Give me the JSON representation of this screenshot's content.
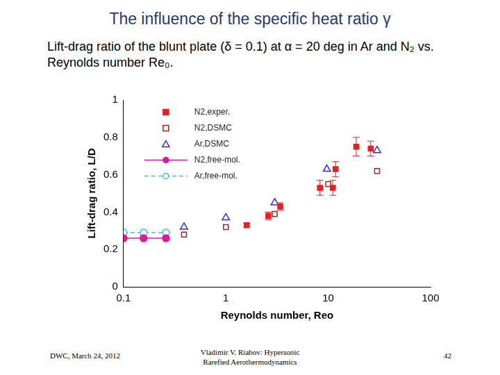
{
  "title": "The influence of the specific heat ratio γ",
  "subtitle": "Lift-drag ratio of the blunt plate (δ = 0.1) at α = 20 deg in Ar and N₂ vs. Reynolds number Re₀.",
  "footer": {
    "left": "DWC, March 24, 2012",
    "center": [
      "Vladimir V. Riabov: Hypersonic",
      "Rarefied Aerothermodynamics"
    ],
    "right": "42"
  },
  "chart_data": {
    "type": "scatter",
    "x_label": "Reynolds number, Reo",
    "y_label": "Lift-drag ratio, L/D",
    "log": "x",
    "xlim": [
      0.1,
      100
    ],
    "xticks": [
      0.1,
      1,
      10,
      100
    ],
    "ylim": [
      0,
      1
    ],
    "yticks": [
      0,
      0.2,
      0.4,
      0.6,
      0.8,
      1
    ],
    "grid": false,
    "legend": "upper left",
    "series": [
      {
        "name": "N2,exper.",
        "color": "#ee1c1c",
        "marker": "square",
        "x": [
          1.6,
          2.6,
          3.4,
          8.3,
          11.8,
          11.1,
          18.8,
          26
        ],
        "values": [
          0.33,
          0.38,
          0.43,
          0.53,
          0.63,
          0.53,
          0.75,
          0.74
        ],
        "errors": [
          0.01,
          0.02,
          0.02,
          0.04,
          0.04,
          0.04,
          0.05,
          0.04
        ]
      },
      {
        "name": "N2,DSMC",
        "color": "#a0281e",
        "marker": "square-open",
        "x": [
          0.39,
          1,
          3.0,
          10,
          30
        ],
        "values": [
          0.28,
          0.32,
          0.39,
          0.55,
          0.62
        ]
      },
      {
        "name": "Ar,DSMC",
        "color": "#2a2ae0",
        "marker": "triangle-open",
        "x": [
          0.39,
          1,
          3.0,
          9.7,
          30
        ],
        "values": [
          0.32,
          0.37,
          0.45,
          0.63,
          0.73
        ]
      },
      {
        "name": "N2,free-mol.",
        "color": "#e0199b",
        "marker": "circle",
        "line_style": "solid",
        "x": [
          0.1,
          0.157,
          0.26
        ],
        "values": [
          0.26,
          0.26,
          0.26
        ]
      },
      {
        "name": "Ar,free-mol.",
        "color": "#33c4e0",
        "marker": "circle-open",
        "line_style": "dashed",
        "x": [
          0.1,
          0.157,
          0.26
        ],
        "values": [
          0.29,
          0.29,
          0.29
        ]
      }
    ]
  }
}
